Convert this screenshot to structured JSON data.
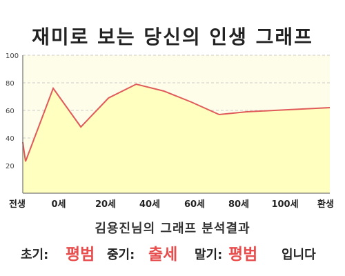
{
  "title": "재미로 보는 당신의 인생 그래프",
  "subtitle": "김용진님의 그래프 분석결과",
  "result": {
    "early_label": "초기:",
    "early_value": "평범",
    "mid_label": "중기:",
    "mid_value": "출세",
    "late_label": "말기:",
    "late_value": "평범",
    "suffix": "입니다"
  },
  "colors": {
    "accent": "#e84d4d",
    "fill": "#ffffc0",
    "line": "#e05a5a",
    "plot_bg": "#fdfde9"
  },
  "chart_data": {
    "type": "area",
    "x": [
      -1,
      0,
      10,
      20,
      30,
      40,
      50,
      60,
      70,
      80,
      90,
      100,
      110
    ],
    "x_tick_labels": [
      "전생",
      "0세",
      "20세",
      "40세",
      "60세",
      "80세",
      "100세",
      "환생"
    ],
    "y": [
      37,
      23,
      76,
      48,
      69,
      79,
      74,
      66,
      57,
      59,
      60,
      61,
      62
    ],
    "ylim": [
      0,
      100
    ],
    "y_ticks": [
      20,
      40,
      60,
      80,
      100
    ],
    "grid": true,
    "legend": "none"
  }
}
